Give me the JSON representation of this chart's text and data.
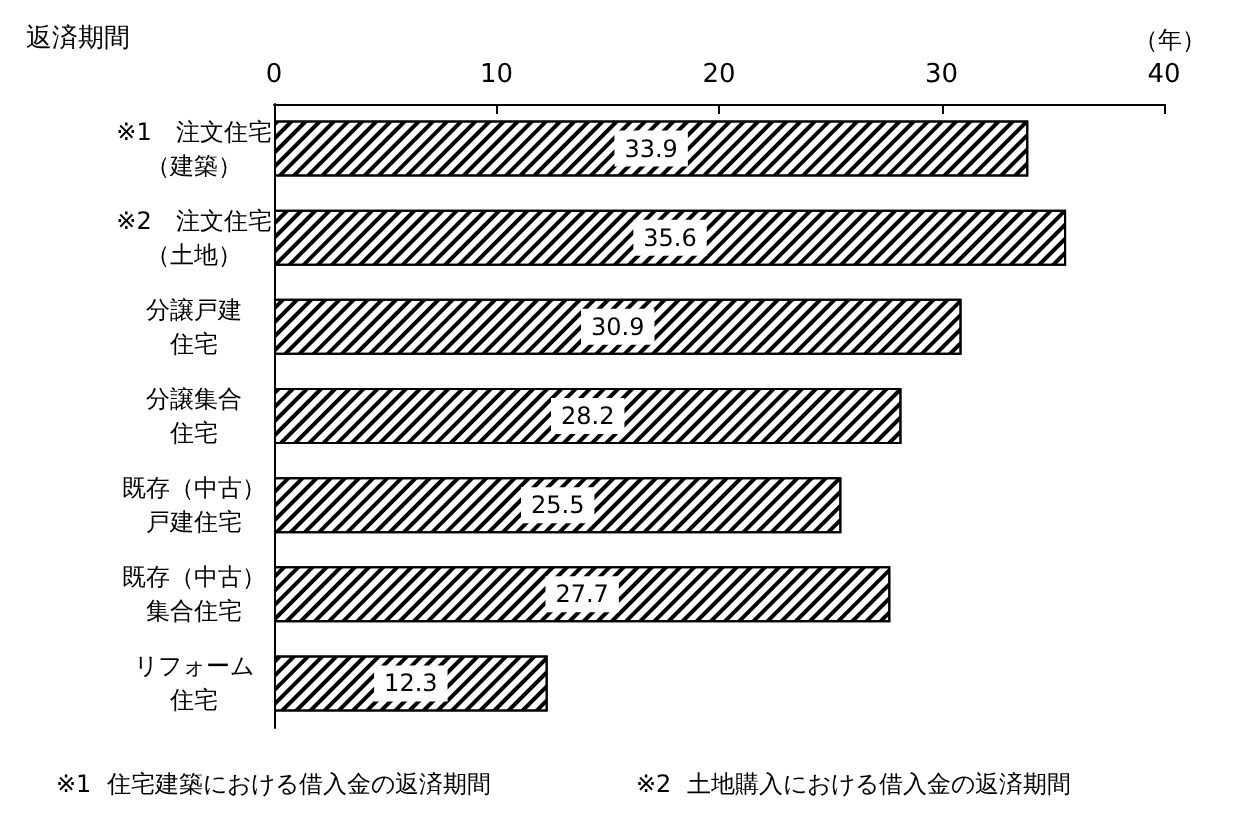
{
  "chart_data": {
    "type": "bar",
    "orientation": "horizontal",
    "title": "返済期間",
    "xlabel": "（年）",
    "categories": [
      "※1　注文住宅（建築）",
      "※2　注文住宅（土地）",
      "分譲戸建住宅",
      "分譲集合住宅",
      "既存（中古）戸建住宅",
      "既存（中古）集合住宅",
      "リフォーム住宅"
    ],
    "values": [
      33.9,
      35.6,
      30.9,
      28.2,
      25.5,
      27.7,
      12.3
    ],
    "color": "#ffffff",
    "xlim": [
      0,
      40
    ],
    "xticks": [
      0,
      10,
      20,
      30,
      40
    ],
    "grid": false,
    "data_labels": true,
    "annotations": [
      "※1  住宅建築における借入金の返済期間",
      "※2  土地購入における借入金の返済期間"
    ]
  }
}
